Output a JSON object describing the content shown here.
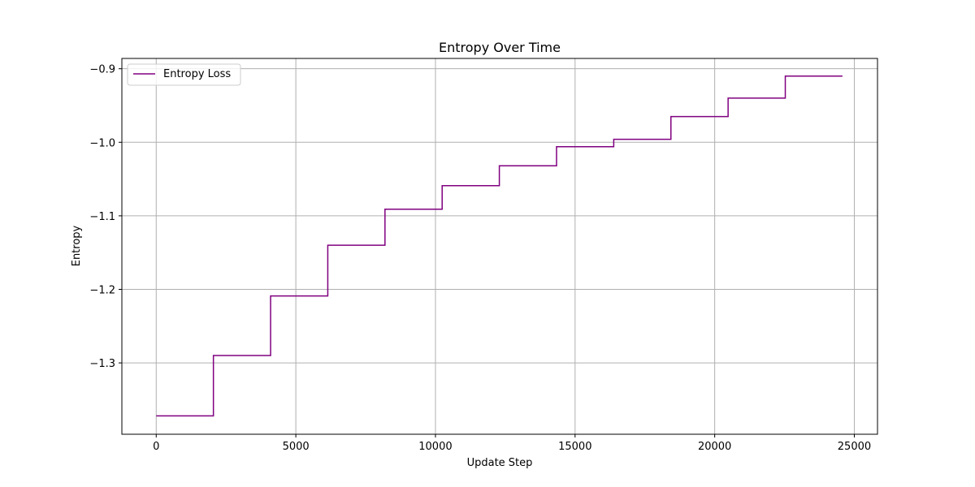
{
  "chart_data": {
    "type": "line",
    "title": "Entropy Over Time",
    "xlabel": "Update Step",
    "ylabel": "Entropy",
    "xlim": [
      -1230,
      25830
    ],
    "ylim": [
      -1.397,
      -0.886
    ],
    "xticks": [
      0,
      5000,
      10000,
      15000,
      20000,
      25000
    ],
    "xtick_labels": [
      "0",
      "5000",
      "10000",
      "15000",
      "20000",
      "25000"
    ],
    "yticks": [
      -1.3,
      -1.2,
      -1.1,
      -1.0,
      -0.9
    ],
    "ytick_labels": [
      "−1.3",
      "−1.2",
      "−1.1",
      "−1.0",
      "−0.9"
    ],
    "grid": true,
    "legend_placement": "top-left",
    "series": [
      {
        "name": "Entropy Loss",
        "color": "#800080",
        "step": true,
        "x": [
          0,
          2048,
          4096,
          6144,
          8192,
          10240,
          12288,
          14336,
          16384,
          18432,
          20480,
          22528,
          24576
        ],
        "y": [
          -1.372,
          -1.29,
          -1.209,
          -1.14,
          -1.091,
          -1.059,
          -1.032,
          -1.006,
          -0.996,
          -0.965,
          -0.94,
          -0.91,
          -0.91
        ]
      }
    ]
  }
}
